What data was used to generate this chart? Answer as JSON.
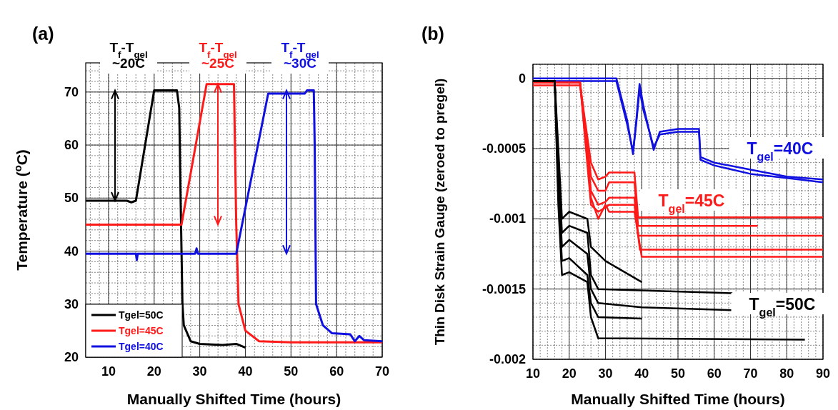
{
  "chart_data": [
    {
      "type": "line",
      "title": "(a)",
      "xlabel": "Manually Shifted Time (hours)",
      "ylabel": "Temperature ($^{o}$C)",
      "xlim": [
        5,
        70
      ],
      "xticks": [
        10,
        20,
        30,
        40,
        50,
        60,
        70
      ],
      "ylim": [
        20,
        75.5
      ],
      "yticks": [
        20,
        30,
        40,
        50,
        60,
        70
      ],
      "grid": true,
      "legend": "bottom left",
      "series": [
        {
          "name": "Tgel=50C",
          "color": "#000000",
          "x": [
            5,
            14,
            15,
            16,
            20,
            25,
            25.5,
            25.8,
            26,
            26.2,
            26.5,
            28,
            30,
            35,
            38,
            40
          ],
          "values": [
            49.5,
            49.5,
            49.2,
            49.5,
            70.3,
            70.3,
            67,
            50,
            40,
            30,
            26,
            23,
            22.5,
            22.3,
            22.5,
            21.8
          ]
        },
        {
          "name": "Tgel=45C",
          "color": "#ff1a1a",
          "x": [
            5,
            26,
            31.5,
            37.5,
            38,
            38.5,
            40,
            43,
            50,
            70
          ],
          "values": [
            45,
            45,
            71.5,
            71.5,
            45,
            30,
            25,
            23,
            22.8,
            22.8
          ]
        },
        {
          "name": "Tgel=40C",
          "color": "#1010e0",
          "x": [
            5,
            16,
            16.2,
            16.4,
            29,
            29.3,
            29.6,
            38,
            45,
            53,
            53.5,
            55,
            55.2,
            55.5,
            57,
            59,
            63,
            64,
            65,
            66,
            70
          ],
          "values": [
            39.5,
            39.5,
            38.3,
            39.5,
            39.5,
            40.5,
            39.5,
            39.5,
            69.7,
            69.7,
            70.3,
            70.3,
            60,
            30,
            26,
            24.5,
            24.3,
            23,
            24,
            23.2,
            23
          ]
        }
      ],
      "annotations": [
        "T$_{f}$-T$_{gel}$\n~20C",
        "T$_{f}$-T$_{gel}$\n~25C",
        "T$_{f}$-T$_{gel}$\n~30C"
      ]
    },
    {
      "type": "line",
      "title": "(b)",
      "xlabel": "Manually Shifted Time (hours)",
      "ylabel": "Thin Disk Strain Gauge (zeroed to pregel)",
      "xlim": [
        10,
        90
      ],
      "xticks": [
        10,
        20,
        30,
        40,
        50,
        60,
        70,
        80,
        90
      ],
      "ylim": [
        -0.002,
        0.0001
      ],
      "yticks": [
        0,
        -0.0005,
        -0.001,
        -0.0015,
        -0.002
      ],
      "grid": true,
      "series": [
        {
          "color": "#1010e0",
          "x": [
            10,
            33,
            36,
            37.6,
            38.5,
            39.4,
            40.5,
            43.3,
            45,
            50,
            55.8,
            56.2,
            60,
            70,
            80,
            90
          ],
          "values": [
            0,
            0,
            -0.0003,
            -0.00054,
            -0.0003,
            -4e-05,
            -0.0002,
            -0.00051,
            -0.00038,
            -0.00036,
            -0.00036,
            -0.00056,
            -0.0006,
            -0.00065,
            -0.0007,
            -0.00072
          ]
        },
        {
          "color": "#ff1a1a",
          "x": [
            10,
            23,
            26,
            28,
            30,
            31,
            38,
            39,
            90
          ],
          "values": [
            -5e-05,
            -5e-05,
            -0.0006,
            -0.00072,
            -0.0007,
            -0.00067,
            -0.00067,
            -0.00099,
            -0.00099
          ]
        },
        {
          "color": "#000000",
          "x": [
            16,
            17,
            18,
            20,
            25,
            26,
            30,
            40
          ],
          "values": [
            -2e-05,
            -0.0005,
            -0.001,
            -0.00095,
            -0.001,
            -0.0012,
            -0.0013,
            -0.00145
          ]
        },
        {
          "color": "#1010e0",
          "x": [
            10,
            33,
            36,
            37.6,
            38.5,
            39.4,
            40.5,
            43.3,
            45,
            50,
            55.8,
            56.2,
            60,
            70,
            80,
            90
          ],
          "values": [
            -2e-05,
            -2e-05,
            -0.00033,
            -0.00052,
            -0.00032,
            -8e-05,
            -0.00023,
            -0.00049,
            -0.0004,
            -0.00038,
            -0.00038,
            -0.00058,
            -0.00062,
            -0.00068,
            -0.00071,
            -0.00074
          ]
        },
        {
          "color": "#ff1a1a",
          "x": [
            10,
            23,
            26,
            28,
            30,
            31,
            38,
            39,
            72
          ],
          "values": [
            -3e-05,
            -3e-05,
            -0.0007,
            -0.0008,
            -0.0008,
            -0.00074,
            -0.00074,
            -0.00105,
            -0.00105
          ]
        },
        {
          "color": "#ff1a1a",
          "x": [
            10,
            23,
            26,
            28,
            30,
            31,
            38,
            39,
            90
          ],
          "values": [
            -3e-05,
            -3e-05,
            -0.0008,
            -0.0009,
            -0.00088,
            -0.00085,
            -0.00085,
            -0.00112,
            -0.00112
          ]
        },
        {
          "color": "#ff1a1a",
          "x": [
            10,
            23,
            26,
            28,
            30,
            31,
            38,
            39.5,
            90
          ],
          "values": [
            -3e-05,
            -3e-05,
            -0.0009,
            -0.00095,
            -0.00092,
            -0.0009,
            -0.0009,
            -0.00122,
            -0.00122
          ]
        },
        {
          "color": "#ff1a1a",
          "x": [
            10,
            23,
            26,
            28,
            30,
            31,
            38,
            40,
            90
          ],
          "values": [
            -3e-05,
            -3e-05,
            -0.00085,
            -0.001,
            -0.0009,
            -0.00095,
            -0.00095,
            -0.00127,
            -0.00127
          ]
        },
        {
          "color": "#000000",
          "x": [
            10,
            16,
            17,
            18,
            20,
            25,
            26,
            28,
            65
          ],
          "values": [
            -2e-05,
            -2e-05,
            -0.0006,
            -0.0011,
            -0.00105,
            -0.0011,
            -0.0014,
            -0.0015,
            -0.00153
          ]
        },
        {
          "color": "#000000",
          "x": [
            10,
            16,
            17,
            18,
            20,
            25,
            26,
            28,
            40,
            65
          ],
          "values": [
            -2e-05,
            -2e-05,
            -0.0007,
            -0.0012,
            -0.00115,
            -0.00125,
            -0.0015,
            -0.0016,
            -0.00163,
            -0.00165
          ]
        },
        {
          "color": "#000000",
          "x": [
            10,
            16,
            17,
            18,
            20,
            25,
            26,
            28,
            40
          ],
          "values": [
            -2e-05,
            -2e-05,
            -0.0008,
            -0.0013,
            -0.00128,
            -0.0014,
            -0.0016,
            -0.0017,
            -0.00171
          ]
        },
        {
          "color": "#000000",
          "x": [
            10,
            16,
            17,
            18,
            20,
            25,
            26,
            28,
            85
          ],
          "values": [
            -2e-05,
            -2e-05,
            -0.0009,
            -0.0014,
            -0.00138,
            -0.00145,
            -0.0017,
            -0.00185,
            -0.00186
          ]
        }
      ],
      "annotations": [
        "T$_{gel}$=40C",
        "T$_{gel}$=45C",
        "T$_{gel}$=50C"
      ]
    }
  ]
}
